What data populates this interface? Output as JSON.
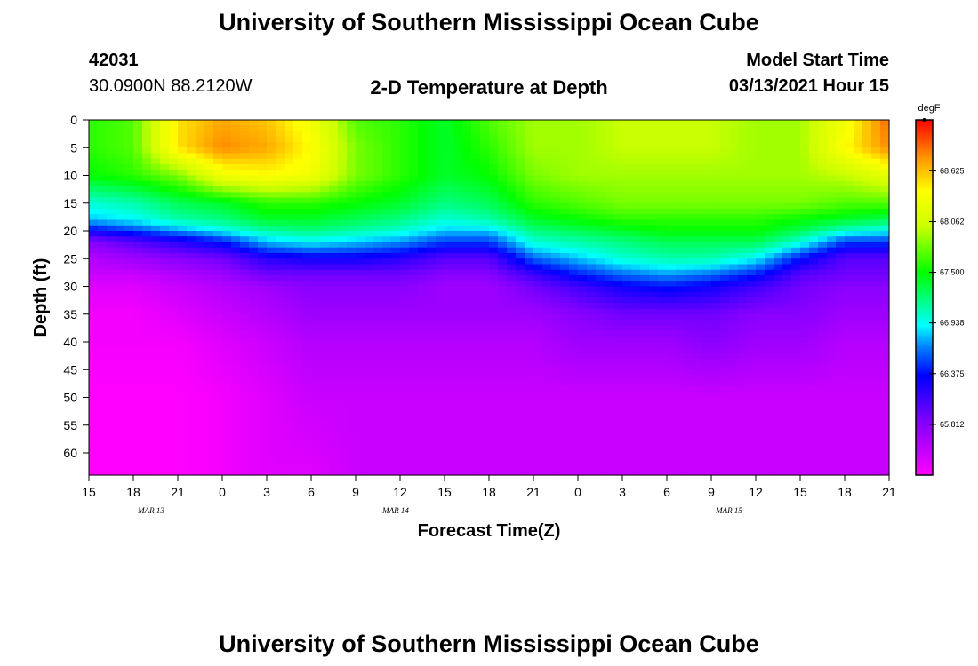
{
  "header": {
    "title_top": "University of Southern Mississippi Ocean Cube",
    "title_bottom": "University of Southern Mississippi Ocean Cube",
    "station_id": "42031",
    "station_coords": "30.0900N 88.2120W",
    "plot_title": "2-D Temperature at Depth",
    "model_start_label": "Model Start Time",
    "model_start_value": "03/13/2021 Hour 15"
  },
  "chart_data": {
    "type": "heatmap",
    "title": "2-D Temperature at Depth",
    "xlabel": "Forecast Time(Z)",
    "ylabel": "Depth (ft)",
    "x_ticks": [
      "15",
      "18",
      "21",
      "0",
      "3",
      "6",
      "9",
      "12",
      "15",
      "18",
      "21",
      "0",
      "3",
      "6",
      "9",
      "12",
      "15",
      "18",
      "21"
    ],
    "date_labels": [
      {
        "label": "MAR 13",
        "tick_index": 1.4
      },
      {
        "label": "MAR 14",
        "tick_index": 6.9
      },
      {
        "label": "MAR 15",
        "tick_index": 14.4
      }
    ],
    "y_ticks": [
      0,
      5,
      10,
      15,
      20,
      25,
      30,
      35,
      40,
      45,
      50,
      55,
      60
    ],
    "ylim": [
      0,
      64
    ],
    "colorbar": {
      "unit": "degF",
      "tick_labels": [
        "68.625",
        "68.062",
        "67.500",
        "66.938",
        "66.375",
        "65.812"
      ],
      "tick_values": [
        68.625,
        68.062,
        67.5,
        66.938,
        66.375,
        65.812
      ],
      "vmin": 65.25,
      "vmax": 69.19
    },
    "grid": {
      "x_hours": [
        0,
        3,
        6,
        9,
        12,
        15,
        18,
        21,
        24,
        27,
        30,
        33,
        36,
        39,
        42,
        45,
        48,
        51,
        54
      ],
      "depths_ft": [
        0,
        5,
        10,
        15,
        18,
        20,
        22,
        25,
        28,
        30,
        35,
        40,
        50,
        63
      ],
      "values": [
        [
          67.6,
          67.7,
          68.5,
          68.7,
          68.6,
          68.3,
          67.7,
          67.6,
          67.4,
          67.7,
          67.9,
          67.9,
          68.0,
          68.0,
          68.0,
          67.9,
          67.9,
          68.3,
          68.9
        ],
        [
          67.6,
          67.7,
          68.5,
          68.8,
          68.7,
          68.4,
          67.8,
          67.6,
          67.4,
          67.6,
          67.9,
          67.9,
          68.0,
          68.0,
          68.0,
          67.9,
          67.9,
          68.4,
          68.8
        ],
        [
          67.5,
          67.6,
          67.8,
          68.3,
          68.4,
          68.3,
          67.8,
          67.6,
          67.4,
          67.5,
          67.8,
          67.9,
          67.9,
          67.9,
          67.9,
          67.9,
          67.9,
          68.0,
          68.2
        ],
        [
          67.0,
          67.1,
          67.3,
          67.4,
          67.6,
          67.6,
          67.5,
          67.4,
          67.2,
          67.3,
          67.6,
          67.7,
          67.8,
          67.8,
          67.8,
          67.8,
          67.8,
          67.7,
          67.7
        ],
        [
          66.8,
          66.9,
          67.1,
          67.2,
          67.4,
          67.4,
          67.3,
          67.2,
          67.0,
          67.1,
          67.4,
          67.5,
          67.6,
          67.6,
          67.6,
          67.6,
          67.5,
          67.4,
          67.3
        ],
        [
          66.3,
          66.5,
          66.7,
          66.9,
          67.1,
          67.2,
          67.1,
          67.0,
          66.8,
          66.8,
          67.2,
          67.3,
          67.4,
          67.5,
          67.5,
          67.5,
          67.3,
          67.0,
          66.9
        ],
        [
          65.8,
          66.0,
          66.2,
          66.4,
          66.8,
          66.9,
          66.8,
          66.7,
          66.5,
          66.5,
          67.0,
          67.1,
          67.2,
          67.3,
          67.3,
          67.3,
          67.0,
          66.5,
          66.5
        ],
        [
          65.6,
          65.7,
          65.8,
          65.9,
          66.2,
          66.3,
          66.3,
          66.2,
          66.0,
          66.0,
          66.6,
          66.8,
          67.0,
          67.1,
          67.1,
          66.9,
          66.4,
          66.0,
          66.0
        ],
        [
          65.5,
          65.5,
          65.6,
          65.7,
          65.9,
          65.9,
          65.9,
          65.9,
          65.8,
          65.8,
          66.1,
          66.4,
          66.6,
          66.7,
          66.6,
          66.4,
          66.0,
          65.9,
          65.9
        ],
        [
          65.4,
          65.4,
          65.5,
          65.6,
          65.7,
          65.8,
          65.8,
          65.8,
          65.7,
          65.7,
          65.9,
          66.1,
          66.3,
          66.4,
          66.3,
          66.1,
          65.9,
          65.8,
          65.8
        ],
        [
          65.3,
          65.3,
          65.4,
          65.5,
          65.6,
          65.7,
          65.7,
          65.7,
          65.7,
          65.7,
          65.7,
          65.8,
          65.9,
          65.9,
          65.9,
          65.8,
          65.8,
          65.7,
          65.7
        ],
        [
          65.3,
          65.3,
          65.3,
          65.4,
          65.5,
          65.6,
          65.6,
          65.6,
          65.6,
          65.6,
          65.6,
          65.7,
          65.7,
          65.7,
          65.8,
          65.7,
          65.7,
          65.6,
          65.6
        ],
        [
          65.25,
          65.25,
          65.25,
          65.3,
          65.4,
          65.5,
          65.5,
          65.5,
          65.5,
          65.5,
          65.5,
          65.5,
          65.5,
          65.5,
          65.5,
          65.5,
          65.5,
          65.5,
          65.5
        ],
        [
          65.25,
          65.25,
          65.25,
          65.3,
          65.4,
          65.4,
          65.5,
          65.5,
          65.5,
          65.5,
          65.5,
          65.5,
          65.5,
          65.5,
          65.5,
          65.5,
          65.5,
          65.5,
          65.5
        ]
      ]
    }
  }
}
